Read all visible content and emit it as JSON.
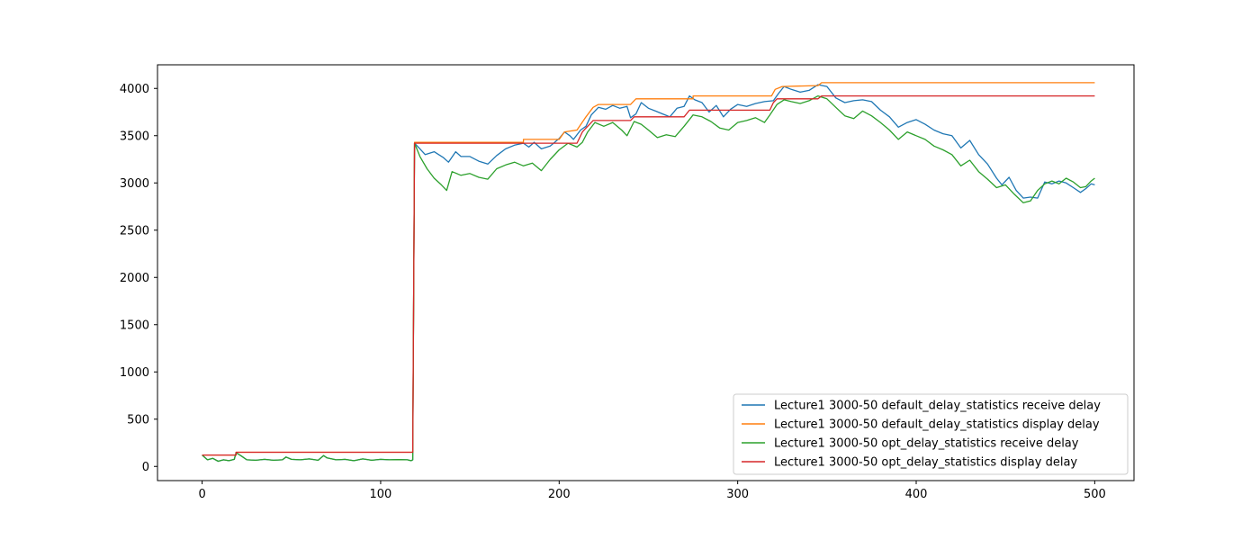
{
  "chart_data": {
    "type": "line",
    "title": "",
    "xlabel": "",
    "ylabel": "",
    "xlim": [
      -25,
      522
    ],
    "ylim": [
      -150,
      4250
    ],
    "xticks": [
      0,
      100,
      200,
      300,
      400,
      500
    ],
    "yticks": [
      0,
      500,
      1000,
      1500,
      2000,
      2500,
      3000,
      3500,
      4000
    ],
    "grid": false,
    "legend_position": "lower right",
    "series": [
      {
        "name": "Lecture1 3000-50 default_delay_statistics receive delay",
        "color": "#1f77b4",
        "points": [
          [
            0,
            120
          ],
          [
            3,
            70
          ],
          [
            6,
            85
          ],
          [
            9,
            55
          ],
          [
            12,
            70
          ],
          [
            15,
            60
          ],
          [
            18,
            75
          ],
          [
            19,
            145
          ],
          [
            22,
            110
          ],
          [
            25,
            70
          ],
          [
            30,
            65
          ],
          [
            35,
            75
          ],
          [
            40,
            65
          ],
          [
            45,
            70
          ],
          [
            47,
            100
          ],
          [
            50,
            75
          ],
          [
            55,
            70
          ],
          [
            60,
            80
          ],
          [
            65,
            65
          ],
          [
            68,
            115
          ],
          [
            70,
            90
          ],
          [
            75,
            70
          ],
          [
            80,
            75
          ],
          [
            85,
            60
          ],
          [
            90,
            80
          ],
          [
            95,
            65
          ],
          [
            100,
            75
          ],
          [
            105,
            70
          ],
          [
            110,
            72
          ],
          [
            115,
            70
          ],
          [
            117,
            60
          ],
          [
            118,
            70
          ],
          [
            119,
            3420
          ],
          [
            122,
            3360
          ],
          [
            125,
            3300
          ],
          [
            130,
            3330
          ],
          [
            135,
            3270
          ],
          [
            138,
            3220
          ],
          [
            142,
            3330
          ],
          [
            145,
            3280
          ],
          [
            150,
            3280
          ],
          [
            155,
            3230
          ],
          [
            160,
            3200
          ],
          [
            165,
            3290
          ],
          [
            170,
            3360
          ],
          [
            175,
            3400
          ],
          [
            180,
            3420
          ],
          [
            183,
            3380
          ],
          [
            186,
            3430
          ],
          [
            190,
            3360
          ],
          [
            195,
            3390
          ],
          [
            200,
            3470
          ],
          [
            203,
            3540
          ],
          [
            206,
            3500
          ],
          [
            208,
            3460
          ],
          [
            212,
            3560
          ],
          [
            215,
            3600
          ],
          [
            218,
            3720
          ],
          [
            222,
            3800
          ],
          [
            226,
            3780
          ],
          [
            230,
            3820
          ],
          [
            234,
            3790
          ],
          [
            238,
            3810
          ],
          [
            240,
            3690
          ],
          [
            243,
            3730
          ],
          [
            246,
            3850
          ],
          [
            250,
            3790
          ],
          [
            254,
            3760
          ],
          [
            258,
            3730
          ],
          [
            262,
            3700
          ],
          [
            266,
            3790
          ],
          [
            270,
            3810
          ],
          [
            273,
            3920
          ],
          [
            276,
            3880
          ],
          [
            280,
            3850
          ],
          [
            284,
            3750
          ],
          [
            288,
            3820
          ],
          [
            292,
            3700
          ],
          [
            296,
            3780
          ],
          [
            300,
            3830
          ],
          [
            305,
            3810
          ],
          [
            310,
            3840
          ],
          [
            315,
            3860
          ],
          [
            320,
            3870
          ],
          [
            323,
            3950
          ],
          [
            326,
            4020
          ],
          [
            330,
            3990
          ],
          [
            335,
            3960
          ],
          [
            340,
            3980
          ],
          [
            345,
            4040
          ],
          [
            350,
            4020
          ],
          [
            355,
            3900
          ],
          [
            360,
            3850
          ],
          [
            365,
            3870
          ],
          [
            370,
            3880
          ],
          [
            375,
            3860
          ],
          [
            380,
            3770
          ],
          [
            385,
            3700
          ],
          [
            390,
            3590
          ],
          [
            395,
            3640
          ],
          [
            400,
            3670
          ],
          [
            405,
            3620
          ],
          [
            410,
            3560
          ],
          [
            415,
            3520
          ],
          [
            420,
            3500
          ],
          [
            425,
            3370
          ],
          [
            430,
            3450
          ],
          [
            435,
            3300
          ],
          [
            440,
            3200
          ],
          [
            445,
            3050
          ],
          [
            448,
            2980
          ],
          [
            452,
            3060
          ],
          [
            456,
            2920
          ],
          [
            460,
            2840
          ],
          [
            464,
            2850
          ],
          [
            468,
            2840
          ],
          [
            472,
            3010
          ],
          [
            476,
            2990
          ],
          [
            480,
            3020
          ],
          [
            484,
            3000
          ],
          [
            488,
            2950
          ],
          [
            492,
            2900
          ],
          [
            495,
            2940
          ],
          [
            498,
            2990
          ],
          [
            500,
            2980
          ]
        ]
      },
      {
        "name": "Lecture1 3000-50 default_delay_statistics display delay",
        "color": "#ff7f0e",
        "points": [
          [
            0,
            120
          ],
          [
            19,
            120
          ],
          [
            19,
            150
          ],
          [
            118,
            150
          ],
          [
            119,
            3430
          ],
          [
            180,
            3430
          ],
          [
            180,
            3460
          ],
          [
            200,
            3460
          ],
          [
            203,
            3540
          ],
          [
            210,
            3560
          ],
          [
            215,
            3700
          ],
          [
            219,
            3800
          ],
          [
            222,
            3830
          ],
          [
            240,
            3830
          ],
          [
            243,
            3890
          ],
          [
            275,
            3890
          ],
          [
            275,
            3920
          ],
          [
            319,
            3920
          ],
          [
            321,
            3990
          ],
          [
            325,
            4020
          ],
          [
            345,
            4030
          ],
          [
            347,
            4060
          ],
          [
            500,
            4060
          ]
        ]
      },
      {
        "name": "Lecture1 3000-50 opt_delay_statistics receive delay",
        "color": "#2ca02c",
        "points": [
          [
            0,
            120
          ],
          [
            3,
            70
          ],
          [
            6,
            85
          ],
          [
            9,
            55
          ],
          [
            12,
            70
          ],
          [
            15,
            60
          ],
          [
            18,
            75
          ],
          [
            19,
            145
          ],
          [
            22,
            110
          ],
          [
            25,
            70
          ],
          [
            30,
            65
          ],
          [
            35,
            75
          ],
          [
            40,
            65
          ],
          [
            45,
            70
          ],
          [
            47,
            100
          ],
          [
            50,
            75
          ],
          [
            55,
            70
          ],
          [
            60,
            80
          ],
          [
            65,
            65
          ],
          [
            68,
            115
          ],
          [
            70,
            90
          ],
          [
            75,
            70
          ],
          [
            80,
            75
          ],
          [
            85,
            60
          ],
          [
            90,
            80
          ],
          [
            95,
            65
          ],
          [
            100,
            75
          ],
          [
            105,
            70
          ],
          [
            110,
            72
          ],
          [
            115,
            70
          ],
          [
            117,
            60
          ],
          [
            118,
            70
          ],
          [
            119,
            3420
          ],
          [
            122,
            3280
          ],
          [
            126,
            3150
          ],
          [
            130,
            3050
          ],
          [
            134,
            2980
          ],
          [
            137,
            2920
          ],
          [
            140,
            3120
          ],
          [
            145,
            3080
          ],
          [
            150,
            3100
          ],
          [
            155,
            3060
          ],
          [
            160,
            3040
          ],
          [
            165,
            3150
          ],
          [
            170,
            3190
          ],
          [
            175,
            3220
          ],
          [
            180,
            3180
          ],
          [
            185,
            3210
          ],
          [
            190,
            3130
          ],
          [
            195,
            3250
          ],
          [
            200,
            3350
          ],
          [
            205,
            3420
          ],
          [
            210,
            3380
          ],
          [
            213,
            3430
          ],
          [
            216,
            3540
          ],
          [
            220,
            3640
          ],
          [
            225,
            3600
          ],
          [
            230,
            3640
          ],
          [
            235,
            3560
          ],
          [
            238,
            3500
          ],
          [
            242,
            3650
          ],
          [
            246,
            3620
          ],
          [
            250,
            3560
          ],
          [
            255,
            3480
          ],
          [
            260,
            3510
          ],
          [
            265,
            3490
          ],
          [
            270,
            3600
          ],
          [
            275,
            3720
          ],
          [
            280,
            3700
          ],
          [
            285,
            3650
          ],
          [
            290,
            3580
          ],
          [
            295,
            3560
          ],
          [
            300,
            3640
          ],
          [
            305,
            3660
          ],
          [
            310,
            3690
          ],
          [
            315,
            3640
          ],
          [
            318,
            3720
          ],
          [
            322,
            3830
          ],
          [
            326,
            3880
          ],
          [
            330,
            3860
          ],
          [
            335,
            3840
          ],
          [
            340,
            3870
          ],
          [
            345,
            3920
          ],
          [
            350,
            3890
          ],
          [
            355,
            3800
          ],
          [
            360,
            3710
          ],
          [
            365,
            3680
          ],
          [
            370,
            3760
          ],
          [
            375,
            3710
          ],
          [
            380,
            3640
          ],
          [
            385,
            3560
          ],
          [
            390,
            3460
          ],
          [
            395,
            3540
          ],
          [
            400,
            3500
          ],
          [
            405,
            3460
          ],
          [
            410,
            3390
          ],
          [
            415,
            3350
          ],
          [
            420,
            3300
          ],
          [
            425,
            3180
          ],
          [
            430,
            3240
          ],
          [
            435,
            3120
          ],
          [
            440,
            3040
          ],
          [
            445,
            2950
          ],
          [
            450,
            2980
          ],
          [
            455,
            2880
          ],
          [
            460,
            2790
          ],
          [
            464,
            2810
          ],
          [
            468,
            2920
          ],
          [
            472,
            2990
          ],
          [
            476,
            3020
          ],
          [
            480,
            2990
          ],
          [
            484,
            3050
          ],
          [
            488,
            3010
          ],
          [
            492,
            2950
          ],
          [
            495,
            2960
          ],
          [
            498,
            3020
          ],
          [
            500,
            3050
          ]
        ]
      },
      {
        "name": "Lecture1 3000-50 opt_delay_statistics display delay",
        "color": "#d62728",
        "points": [
          [
            0,
            120
          ],
          [
            19,
            120
          ],
          [
            19,
            150
          ],
          [
            118,
            150
          ],
          [
            119,
            3420
          ],
          [
            210,
            3420
          ],
          [
            213,
            3540
          ],
          [
            216,
            3600
          ],
          [
            219,
            3660
          ],
          [
            240,
            3660
          ],
          [
            242,
            3700
          ],
          [
            270,
            3700
          ],
          [
            273,
            3770
          ],
          [
            318,
            3770
          ],
          [
            320,
            3850
          ],
          [
            322,
            3890
          ],
          [
            345,
            3890
          ],
          [
            347,
            3920
          ],
          [
            500,
            3920
          ]
        ]
      }
    ]
  }
}
